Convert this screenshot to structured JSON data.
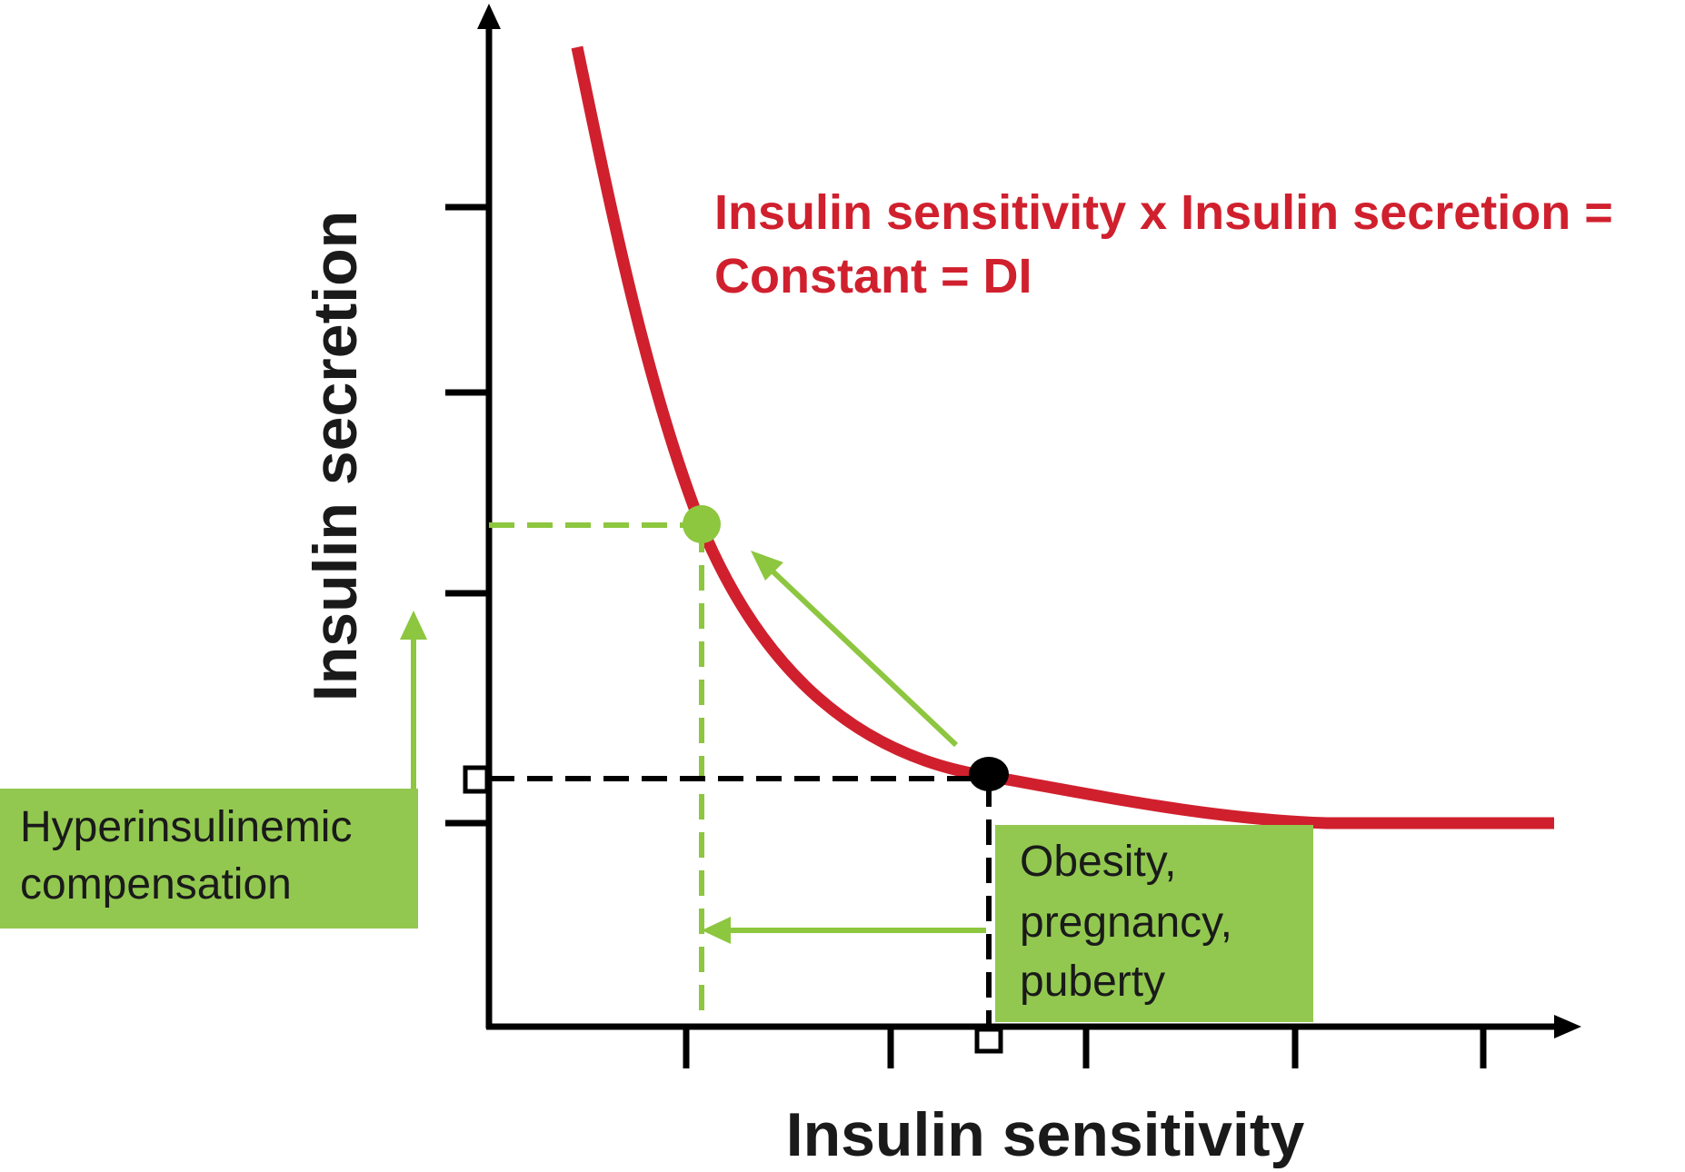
{
  "axes": {
    "x_title": "Insulin sensitivity",
    "y_title": "Insulin secretion"
  },
  "equation": {
    "line1": "Insulin sensitivity x Insulin secretion =",
    "line2": "Constant = DI"
  },
  "labels": {
    "compensation_line1": "Hyperinsulinemic",
    "compensation_line2": "compensation",
    "conditions_line1": "Obesity,",
    "conditions_line2": "pregnancy,",
    "conditions_line3": "puberty"
  },
  "colors": {
    "curve": "#d0202e",
    "green": "#8dc63f",
    "box_green": "#92c850",
    "black": "#000000"
  }
}
